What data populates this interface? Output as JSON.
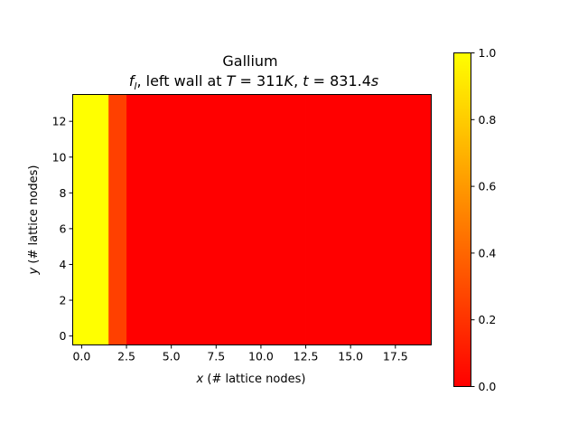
{
  "chart_data": {
    "type": "heatmap",
    "title": "Gallium",
    "subtitle": {
      "var": "f",
      "sub": "l",
      "text1": ", left wall at ",
      "T_var": "T",
      "T_val": " = 311",
      "T_unit": "K",
      "sep": ", ",
      "t_var": "t",
      "t_val": " = 831.4",
      "t_unit": "s"
    },
    "xlabel": {
      "var": "x",
      "rest": " (# lattice nodes)"
    },
    "ylabel": {
      "var": "y",
      "rest": " (# lattice nodes)"
    },
    "grid": false,
    "colormap": "autumn",
    "nx": 20,
    "ny": 14,
    "xlim": [
      -0.5,
      19.5
    ],
    "ylim": [
      -0.5,
      13.5
    ],
    "x_ticks": [
      0.0,
      2.5,
      5.0,
      7.5,
      10.0,
      12.5,
      15.0,
      17.5
    ],
    "x_tick_labels": [
      "0.0",
      "2.5",
      "5.0",
      "7.5",
      "10.0",
      "12.5",
      "15.0",
      "17.5"
    ],
    "y_ticks": [
      0,
      2,
      4,
      6,
      8,
      10,
      12
    ],
    "y_tick_labels": [
      "0",
      "2",
      "4",
      "6",
      "8",
      "10",
      "12"
    ],
    "column_values": [
      1.0,
      1.0,
      0.25,
      0,
      0,
      0,
      0,
      0,
      0,
      0,
      0,
      0,
      0,
      0,
      0,
      0,
      0,
      0,
      0,
      0
    ],
    "colorbar": {
      "range": [
        0.0,
        1.0
      ],
      "ticks": [
        0.0,
        0.2,
        0.4,
        0.6,
        0.8,
        1.0
      ],
      "tick_labels": [
        "0.0",
        "0.2",
        "0.4",
        "0.6",
        "0.8",
        "1.0"
      ]
    }
  }
}
